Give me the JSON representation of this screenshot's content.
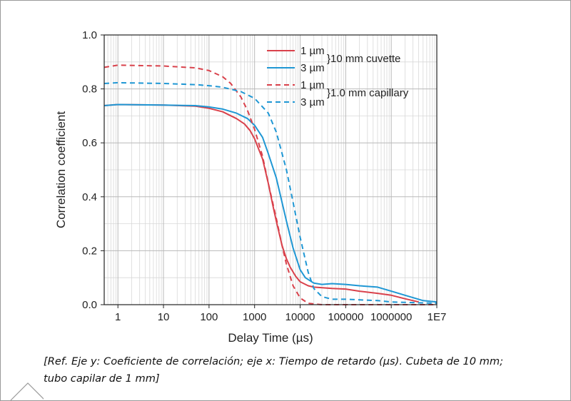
{
  "chart_data": {
    "type": "line",
    "xlabel": "Delay Time (µs)",
    "ylabel": "Correlation coefficient",
    "xscale": "log",
    "xlim": [
      0.5,
      10000000
    ],
    "ylim": [
      0,
      1
    ],
    "grid": true,
    "legend_position": "top-right",
    "x_ticks": [
      {
        "value": 1,
        "label": "1"
      },
      {
        "value": 10,
        "label": "10"
      },
      {
        "value": 100,
        "label": "100"
      },
      {
        "value": 1000,
        "label": "1000"
      },
      {
        "value": 10000,
        "label": "10000"
      },
      {
        "value": 100000,
        "label": "100000"
      },
      {
        "value": 1000000,
        "label": "1000000"
      },
      {
        "value": 10000000,
        "label": "1E7"
      }
    ],
    "y_ticks": [
      {
        "value": 0,
        "label": "0.0"
      },
      {
        "value": 0.2,
        "label": "0.2"
      },
      {
        "value": 0.4,
        "label": "0.4"
      },
      {
        "value": 0.6,
        "label": "0.6"
      },
      {
        "value": 0.8,
        "label": "0.8"
      },
      {
        "value": 1.0,
        "label": "1.0"
      }
    ],
    "legend_groups": [
      "}10 mm cuvette",
      "}1.0 mm capillary"
    ],
    "series": [
      {
        "name": "1 µm",
        "group": 0,
        "color": "#d9414b",
        "dash": "solid",
        "points": [
          [
            0.5,
            0.738
          ],
          [
            1,
            0.742
          ],
          [
            10,
            0.74
          ],
          [
            50,
            0.736
          ],
          [
            100,
            0.728
          ],
          [
            200,
            0.715
          ],
          [
            400,
            0.69
          ],
          [
            600,
            0.67
          ],
          [
            800,
            0.645
          ],
          [
            1000,
            0.615
          ],
          [
            1500,
            0.54
          ],
          [
            2000,
            0.45
          ],
          [
            2500,
            0.37
          ],
          [
            3000,
            0.31
          ],
          [
            4000,
            0.22
          ],
          [
            5000,
            0.17
          ],
          [
            6000,
            0.14
          ],
          [
            8000,
            0.105
          ],
          [
            10000,
            0.085
          ],
          [
            15000,
            0.07
          ],
          [
            20000,
            0.065
          ],
          [
            50000,
            0.06
          ],
          [
            100000,
            0.058
          ],
          [
            200000,
            0.05
          ],
          [
            500000,
            0.042
          ],
          [
            1000000,
            0.035
          ],
          [
            2000000,
            0.022
          ],
          [
            4000000,
            0.01
          ]
        ]
      },
      {
        "name": "3 µm",
        "group": 0,
        "color": "#1f97d4",
        "dash": "solid",
        "points": [
          [
            0.5,
            0.738
          ],
          [
            1,
            0.742
          ],
          [
            10,
            0.74
          ],
          [
            50,
            0.738
          ],
          [
            100,
            0.733
          ],
          [
            200,
            0.725
          ],
          [
            400,
            0.71
          ],
          [
            700,
            0.69
          ],
          [
            1000,
            0.665
          ],
          [
            1500,
            0.62
          ],
          [
            2000,
            0.56
          ],
          [
            3000,
            0.47
          ],
          [
            4000,
            0.38
          ],
          [
            5000,
            0.31
          ],
          [
            7000,
            0.21
          ],
          [
            10000,
            0.13
          ],
          [
            13000,
            0.1
          ],
          [
            20000,
            0.08
          ],
          [
            30000,
            0.075
          ],
          [
            50000,
            0.078
          ],
          [
            100000,
            0.075
          ],
          [
            200000,
            0.07
          ],
          [
            500000,
            0.065
          ],
          [
            1000000,
            0.05
          ],
          [
            2000000,
            0.035
          ],
          [
            5000000,
            0.015
          ],
          [
            10000000,
            0.01
          ]
        ]
      },
      {
        "name": "1 µm",
        "group": 1,
        "color": "#d9414b",
        "dash": "dashed",
        "points": [
          [
            0.5,
            0.88
          ],
          [
            1,
            0.888
          ],
          [
            10,
            0.885
          ],
          [
            50,
            0.878
          ],
          [
            100,
            0.868
          ],
          [
            200,
            0.845
          ],
          [
            300,
            0.82
          ],
          [
            500,
            0.77
          ],
          [
            700,
            0.72
          ],
          [
            1000,
            0.65
          ],
          [
            1500,
            0.55
          ],
          [
            2000,
            0.45
          ],
          [
            3000,
            0.32
          ],
          [
            4000,
            0.22
          ],
          [
            5000,
            0.15
          ],
          [
            7000,
            0.07
          ],
          [
            10000,
            0.025
          ],
          [
            15000,
            0.005
          ],
          [
            30000,
            0.0
          ],
          [
            1000000,
            0.0
          ],
          [
            10000000,
            0.0
          ]
        ]
      },
      {
        "name": "3 µm",
        "group": 1,
        "color": "#1f97d4",
        "dash": "dashed",
        "points": [
          [
            0.5,
            0.82
          ],
          [
            1,
            0.823
          ],
          [
            10,
            0.82
          ],
          [
            50,
            0.816
          ],
          [
            100,
            0.812
          ],
          [
            200,
            0.806
          ],
          [
            500,
            0.79
          ],
          [
            1000,
            0.765
          ],
          [
            2000,
            0.71
          ],
          [
            3000,
            0.64
          ],
          [
            5000,
            0.5
          ],
          [
            7000,
            0.38
          ],
          [
            10000,
            0.25
          ],
          [
            15000,
            0.12
          ],
          [
            20000,
            0.06
          ],
          [
            30000,
            0.03
          ],
          [
            50000,
            0.02
          ],
          [
            100000,
            0.02
          ],
          [
            500000,
            0.015
          ],
          [
            1000000,
            0.01
          ],
          [
            10000000,
            0.005
          ]
        ]
      }
    ]
  },
  "caption": {
    "line1": "[Ref. Eje y: Coeficiente de correlación; eje x: Tiempo de retardo (μs). Cubeta de 10 mm;",
    "line2": "tubo capilar de 1 mm]"
  }
}
